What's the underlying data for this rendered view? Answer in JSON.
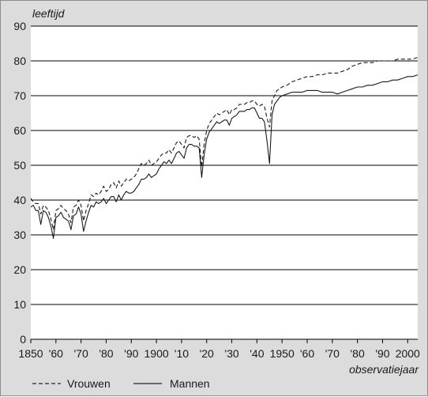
{
  "chart_data": {
    "type": "line",
    "ylabel": "leeftijd",
    "xlabel": "observatiejaar",
    "xlim": [
      1850,
      2004
    ],
    "ylim": [
      0,
      90
    ],
    "yticks": [
      0,
      10,
      20,
      30,
      40,
      50,
      60,
      70,
      80,
      90
    ],
    "xticks": [
      {
        "value": 1850,
        "label": "1850"
      },
      {
        "value": 1860,
        "label": "'60"
      },
      {
        "value": 1870,
        "label": "'70"
      },
      {
        "value": 1880,
        "label": "'80"
      },
      {
        "value": 1890,
        "label": "'90"
      },
      {
        "value": 1900,
        "label": "1900"
      },
      {
        "value": 1910,
        "label": "'10"
      },
      {
        "value": 1920,
        "label": "'20"
      },
      {
        "value": 1930,
        "label": "'30"
      },
      {
        "value": 1940,
        "label": "'40"
      },
      {
        "value": 1950,
        "label": "1950"
      },
      {
        "value": 1960,
        "label": "'60"
      },
      {
        "value": 1970,
        "label": "'70"
      },
      {
        "value": 1980,
        "label": "'80"
      },
      {
        "value": 1990,
        "label": "'90"
      },
      {
        "value": 2000,
        "label": "2000"
      }
    ],
    "grid": "horizontal",
    "legend_position": "bottom",
    "series": [
      {
        "name": "Vrouwen",
        "style": "dashed",
        "points": [
          [
            1850,
            40.5
          ],
          [
            1851,
            39.5
          ],
          [
            1852,
            39.0
          ],
          [
            1853,
            39.0
          ],
          [
            1854,
            36.0
          ],
          [
            1855,
            38.5
          ],
          [
            1856,
            38.0
          ],
          [
            1857,
            37.0
          ],
          [
            1858,
            34.5
          ],
          [
            1859,
            31.5
          ],
          [
            1860,
            37.0
          ],
          [
            1861,
            37.5
          ],
          [
            1862,
            38.5
          ],
          [
            1863,
            37.5
          ],
          [
            1864,
            37.0
          ],
          [
            1865,
            36.0
          ],
          [
            1866,
            33.5
          ],
          [
            1867,
            38.0
          ],
          [
            1868,
            38.5
          ],
          [
            1869,
            40.0
          ],
          [
            1870,
            38.5
          ],
          [
            1871,
            34.0
          ],
          [
            1872,
            37.0
          ],
          [
            1873,
            39.0
          ],
          [
            1874,
            41.5
          ],
          [
            1875,
            41.0
          ],
          [
            1876,
            42.0
          ],
          [
            1877,
            41.5
          ],
          [
            1878,
            42.5
          ],
          [
            1879,
            44.0
          ],
          [
            1880,
            42.5
          ],
          [
            1881,
            43.0
          ],
          [
            1882,
            44.5
          ],
          [
            1883,
            45.0
          ],
          [
            1884,
            43.5
          ],
          [
            1885,
            45.5
          ],
          [
            1886,
            44.0
          ],
          [
            1887,
            45.0
          ],
          [
            1888,
            46.0
          ],
          [
            1889,
            45.5
          ],
          [
            1890,
            46.0
          ],
          [
            1891,
            46.5
          ],
          [
            1892,
            47.5
          ],
          [
            1893,
            49.0
          ],
          [
            1894,
            50.5
          ],
          [
            1895,
            50.0
          ],
          [
            1896,
            50.5
          ],
          [
            1897,
            51.5
          ],
          [
            1898,
            50.0
          ],
          [
            1899,
            50.5
          ],
          [
            1900,
            51.0
          ],
          [
            1901,
            52.0
          ],
          [
            1902,
            53.0
          ],
          [
            1903,
            53.5
          ],
          [
            1904,
            53.5
          ],
          [
            1905,
            54.5
          ],
          [
            1906,
            53.5
          ],
          [
            1907,
            55.0
          ],
          [
            1908,
            56.5
          ],
          [
            1909,
            57.0
          ],
          [
            1910,
            56.0
          ],
          [
            1911,
            55.0
          ],
          [
            1912,
            58.0
          ],
          [
            1913,
            58.5
          ],
          [
            1914,
            58.5
          ],
          [
            1915,
            58.0
          ],
          [
            1916,
            58.5
          ],
          [
            1917,
            57.5
          ],
          [
            1918,
            49.5
          ],
          [
            1919,
            56.0
          ],
          [
            1920,
            60.0
          ],
          [
            1921,
            62.0
          ],
          [
            1922,
            63.0
          ],
          [
            1923,
            64.0
          ],
          [
            1924,
            65.0
          ],
          [
            1925,
            64.5
          ],
          [
            1926,
            65.0
          ],
          [
            1927,
            65.5
          ],
          [
            1928,
            66.0
          ],
          [
            1929,
            64.5
          ],
          [
            1930,
            66.0
          ],
          [
            1931,
            66.0
          ],
          [
            1932,
            66.5
          ],
          [
            1933,
            67.5
          ],
          [
            1934,
            67.5
          ],
          [
            1935,
            67.5
          ],
          [
            1936,
            68.0
          ],
          [
            1937,
            68.0
          ],
          [
            1938,
            68.5
          ],
          [
            1939,
            68.5
          ],
          [
            1940,
            67.5
          ],
          [
            1941,
            67.0
          ],
          [
            1942,
            67.5
          ],
          [
            1943,
            67.0
          ],
          [
            1944,
            63.5
          ],
          [
            1945,
            61.0
          ],
          [
            1946,
            68.5
          ],
          [
            1947,
            70.0
          ],
          [
            1948,
            71.5
          ],
          [
            1949,
            72.0
          ],
          [
            1950,
            72.5
          ],
          [
            1952,
            73.0
          ],
          [
            1954,
            74.0
          ],
          [
            1956,
            74.5
          ],
          [
            1958,
            75.0
          ],
          [
            1960,
            75.5
          ],
          [
            1962,
            75.5
          ],
          [
            1964,
            76.0
          ],
          [
            1966,
            76.0
          ],
          [
            1968,
            76.5
          ],
          [
            1970,
            76.5
          ],
          [
            1972,
            76.5
          ],
          [
            1974,
            77.0
          ],
          [
            1976,
            77.5
          ],
          [
            1978,
            78.5
          ],
          [
            1980,
            79.0
          ],
          [
            1982,
            79.5
          ],
          [
            1984,
            79.5
          ],
          [
            1986,
            79.5
          ],
          [
            1988,
            80.0
          ],
          [
            1990,
            80.0
          ],
          [
            1992,
            80.0
          ],
          [
            1994,
            80.0
          ],
          [
            1996,
            80.5
          ],
          [
            1998,
            80.5
          ],
          [
            2000,
            80.5
          ],
          [
            2002,
            80.5
          ],
          [
            2004,
            81.0
          ]
        ]
      },
      {
        "name": "Mannen",
        "style": "solid",
        "points": [
          [
            1850,
            38.0
          ],
          [
            1851,
            38.5
          ],
          [
            1852,
            37.0
          ],
          [
            1853,
            37.0
          ],
          [
            1854,
            33.0
          ],
          [
            1855,
            37.0
          ],
          [
            1856,
            36.5
          ],
          [
            1857,
            35.0
          ],
          [
            1858,
            32.5
          ],
          [
            1859,
            29.0
          ],
          [
            1860,
            35.0
          ],
          [
            1861,
            35.5
          ],
          [
            1862,
            36.5
          ],
          [
            1863,
            35.0
          ],
          [
            1864,
            34.5
          ],
          [
            1865,
            34.0
          ],
          [
            1866,
            31.5
          ],
          [
            1867,
            35.5
          ],
          [
            1868,
            36.0
          ],
          [
            1869,
            38.0
          ],
          [
            1870,
            36.0
          ],
          [
            1871,
            31.0
          ],
          [
            1872,
            34.0
          ],
          [
            1873,
            36.5
          ],
          [
            1874,
            38.5
          ],
          [
            1875,
            38.0
          ],
          [
            1876,
            39.5
          ],
          [
            1877,
            39.0
          ],
          [
            1878,
            39.5
          ],
          [
            1879,
            40.5
          ],
          [
            1880,
            39.0
          ],
          [
            1881,
            40.0
          ],
          [
            1882,
            41.0
          ],
          [
            1883,
            41.0
          ],
          [
            1884,
            39.5
          ],
          [
            1885,
            41.5
          ],
          [
            1886,
            40.0
          ],
          [
            1887,
            41.5
          ],
          [
            1888,
            42.5
          ],
          [
            1889,
            42.0
          ],
          [
            1890,
            42.0
          ],
          [
            1891,
            42.5
          ],
          [
            1892,
            43.5
          ],
          [
            1893,
            44.5
          ],
          [
            1894,
            46.0
          ],
          [
            1895,
            46.0
          ],
          [
            1896,
            46.5
          ],
          [
            1897,
            47.5
          ],
          [
            1898,
            46.5
          ],
          [
            1899,
            47.0
          ],
          [
            1900,
            47.5
          ],
          [
            1901,
            49.0
          ],
          [
            1902,
            50.0
          ],
          [
            1903,
            51.0
          ],
          [
            1904,
            50.5
          ],
          [
            1905,
            51.5
          ],
          [
            1906,
            50.5
          ],
          [
            1907,
            52.0
          ],
          [
            1908,
            53.5
          ],
          [
            1909,
            54.0
          ],
          [
            1910,
            53.0
          ],
          [
            1911,
            52.0
          ],
          [
            1912,
            55.0
          ],
          [
            1913,
            56.0
          ],
          [
            1914,
            56.0
          ],
          [
            1915,
            55.5
          ],
          [
            1916,
            55.5
          ],
          [
            1917,
            55.0
          ],
          [
            1918,
            46.5
          ],
          [
            1919,
            53.0
          ],
          [
            1920,
            57.5
          ],
          [
            1921,
            59.5
          ],
          [
            1922,
            60.5
          ],
          [
            1923,
            61.5
          ],
          [
            1924,
            62.5
          ],
          [
            1925,
            62.0
          ],
          [
            1926,
            62.5
          ],
          [
            1927,
            63.0
          ],
          [
            1928,
            63.0
          ],
          [
            1929,
            61.5
          ],
          [
            1930,
            63.5
          ],
          [
            1931,
            64.0
          ],
          [
            1932,
            64.5
          ],
          [
            1933,
            65.5
          ],
          [
            1934,
            65.5
          ],
          [
            1935,
            65.5
          ],
          [
            1936,
            66.0
          ],
          [
            1937,
            66.0
          ],
          [
            1938,
            66.5
          ],
          [
            1939,
            66.5
          ],
          [
            1940,
            65.0
          ],
          [
            1941,
            63.5
          ],
          [
            1942,
            63.5
          ],
          [
            1943,
            62.5
          ],
          [
            1944,
            57.0
          ],
          [
            1945,
            50.5
          ],
          [
            1946,
            64.5
          ],
          [
            1947,
            67.5
          ],
          [
            1948,
            68.5
          ],
          [
            1949,
            69.5
          ],
          [
            1950,
            70.0
          ],
          [
            1952,
            70.5
          ],
          [
            1954,
            71.0
          ],
          [
            1956,
            71.0
          ],
          [
            1958,
            71.0
          ],
          [
            1960,
            71.5
          ],
          [
            1962,
            71.5
          ],
          [
            1964,
            71.5
          ],
          [
            1966,
            71.0
          ],
          [
            1968,
            71.0
          ],
          [
            1970,
            71.0
          ],
          [
            1972,
            70.5
          ],
          [
            1974,
            71.0
          ],
          [
            1976,
            71.5
          ],
          [
            1978,
            72.0
          ],
          [
            1980,
            72.5
          ],
          [
            1982,
            72.5
          ],
          [
            1984,
            73.0
          ],
          [
            1986,
            73.0
          ],
          [
            1988,
            73.5
          ],
          [
            1990,
            74.0
          ],
          [
            1992,
            74.0
          ],
          [
            1994,
            74.5
          ],
          [
            1996,
            74.5
          ],
          [
            1998,
            75.0
          ],
          [
            2000,
            75.5
          ],
          [
            2002,
            75.5
          ],
          [
            2004,
            76.0
          ]
        ]
      }
    ]
  }
}
